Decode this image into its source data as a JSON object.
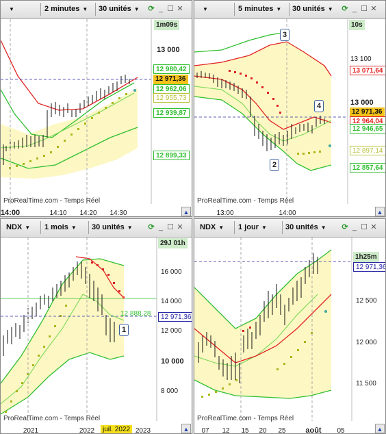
{
  "panels": [
    {
      "id": "tl",
      "toolbar": {
        "symbol": "",
        "timeframe": "2 minutes",
        "units": "30 unités"
      },
      "timer": "1m09s",
      "y_labels": [
        "13 000"
      ],
      "price_tags": [
        "12 980,42",
        "12 971,36",
        "12 962,06",
        "12 955,73",
        "12 939,87",
        "12 899,33"
      ],
      "x_labels": [
        "14:00",
        "14:10",
        "14:20",
        "14:30"
      ],
      "footer": "ProRealTime.com - Temps Réel",
      "annotations": []
    },
    {
      "id": "tr",
      "toolbar": {
        "symbol": "",
        "timeframe": "5 minutes",
        "units": "30 unités"
      },
      "timer": "10s",
      "y_labels": [
        "13 100",
        "13 000"
      ],
      "price_tags": [
        "13 071,64",
        "12 971,36",
        "12 964,04",
        "12 946,65",
        "12 897,14",
        "12 857,64"
      ],
      "x_labels": [
        "13:00",
        "14:00"
      ],
      "footer": "ProRealTime.com - Temps Réel",
      "annotations": [
        "3",
        "4",
        "2"
      ]
    },
    {
      "id": "bl",
      "toolbar": {
        "symbol": "NDX",
        "timeframe": "1 mois",
        "units": "30 unités"
      },
      "timer": "29J 01h",
      "y_labels": [
        "16 000",
        "14 000",
        "12 000",
        "10 000",
        "8 000"
      ],
      "price_tags": [
        "12 888,28",
        "12 971,36"
      ],
      "x_labels": [
        "2021",
        "2022",
        "juil. 2022",
        "2023"
      ],
      "footer": "ProRealTime.com - Temps Réel",
      "annotations": [
        "1"
      ]
    },
    {
      "id": "br",
      "toolbar": {
        "symbol": "NDX",
        "timeframe": "1 jour",
        "units": "30 unités"
      },
      "timer": "1h25m",
      "y_labels": [
        "12 500",
        "12 000",
        "11 500"
      ],
      "price_tags": [
        "12 971,36"
      ],
      "x_labels": [
        "07",
        "12",
        "15",
        "20",
        "25",
        "août",
        "05"
      ],
      "footer": "ProRealTime.com - Temps Réel",
      "annotations": []
    }
  ],
  "colors": {
    "band_fill": "#fdf7c3",
    "upper_band": "#2fbf2f",
    "lower_band": "#2fbf2f",
    "red_line": "#e32222",
    "green_mid": "#7ad957",
    "sar_dots_up": "#a8b81a",
    "sar_dots_down": "#d9222a",
    "candle": "#111111",
    "price_line": "#2a2aa8"
  },
  "icons": {
    "dropdown": "chevron-down-icon",
    "refresh": "refresh-icon",
    "minimize": "minimize-icon",
    "maximize": "maximize-icon",
    "close": "close-icon",
    "scroll": "scroll-end-icon"
  }
}
